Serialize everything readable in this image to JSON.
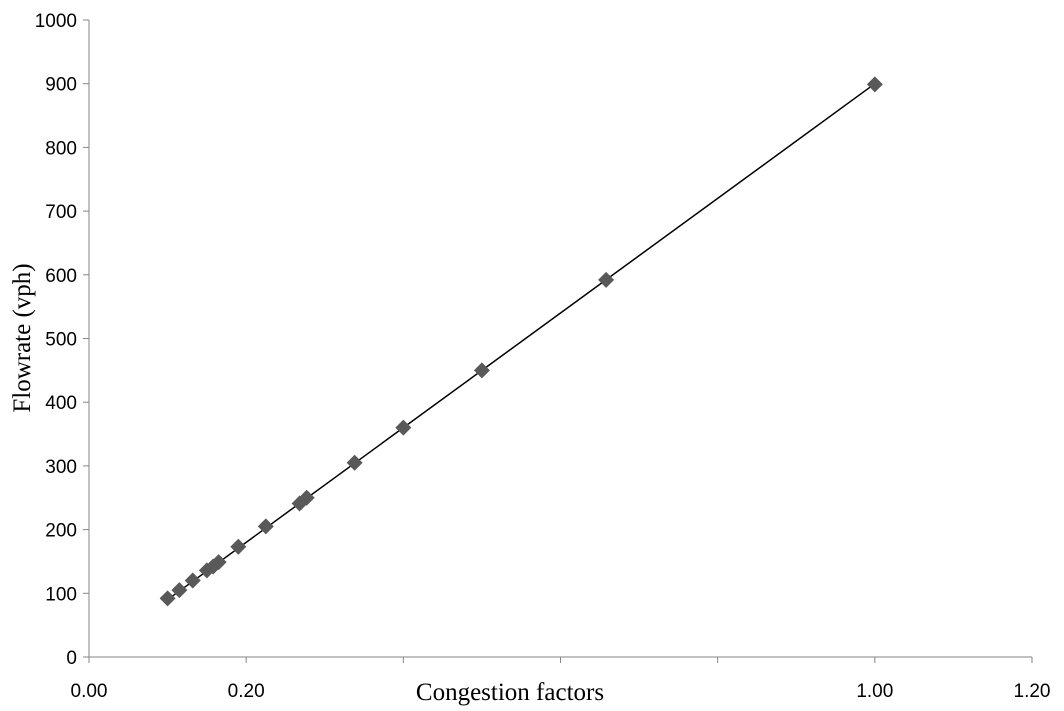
{
  "chart_data": {
    "type": "scatter",
    "title": "",
    "xlabel": "Congestion factors",
    "ylabel": "Flowrate (vph)",
    "xlim": [
      0,
      1.2
    ],
    "ylim": [
      0,
      1000
    ],
    "x_ticks": [
      0,
      0.2,
      0.4,
      0.6,
      0.8,
      1.0,
      1.2
    ],
    "x_tick_labels": [
      "0.00",
      "0.20",
      "",
      "",
      "",
      "1.00",
      "1.20"
    ],
    "y_ticks": [
      0,
      100,
      200,
      300,
      400,
      500,
      600,
      700,
      800,
      900,
      1000
    ],
    "y_tick_labels": [
      "0",
      "100",
      "200",
      "300",
      "400",
      "500",
      "600",
      "700",
      "800",
      "900",
      "1000"
    ],
    "grid": false,
    "legend": "none",
    "marker": "diamond",
    "marker_color": "#595959",
    "trendline": {
      "type": "linear",
      "x": [
        0.1,
        1.0
      ],
      "y": [
        90,
        900
      ],
      "color": "#000000"
    },
    "series": [
      {
        "points": [
          {
            "x": 0.1,
            "y": 92
          },
          {
            "x": 0.115,
            "y": 105
          },
          {
            "x": 0.132,
            "y": 120
          },
          {
            "x": 0.15,
            "y": 136
          },
          {
            "x": 0.158,
            "y": 142
          },
          {
            "x": 0.165,
            "y": 149
          },
          {
            "x": 0.19,
            "y": 173
          },
          {
            "x": 0.225,
            "y": 205
          },
          {
            "x": 0.268,
            "y": 241
          },
          {
            "x": 0.277,
            "y": 250
          },
          {
            "x": 0.338,
            "y": 305
          },
          {
            "x": 0.4,
            "y": 360
          },
          {
            "x": 0.5,
            "y": 450
          },
          {
            "x": 0.658,
            "y": 592
          },
          {
            "x": 1.0,
            "y": 899
          }
        ]
      }
    ]
  }
}
